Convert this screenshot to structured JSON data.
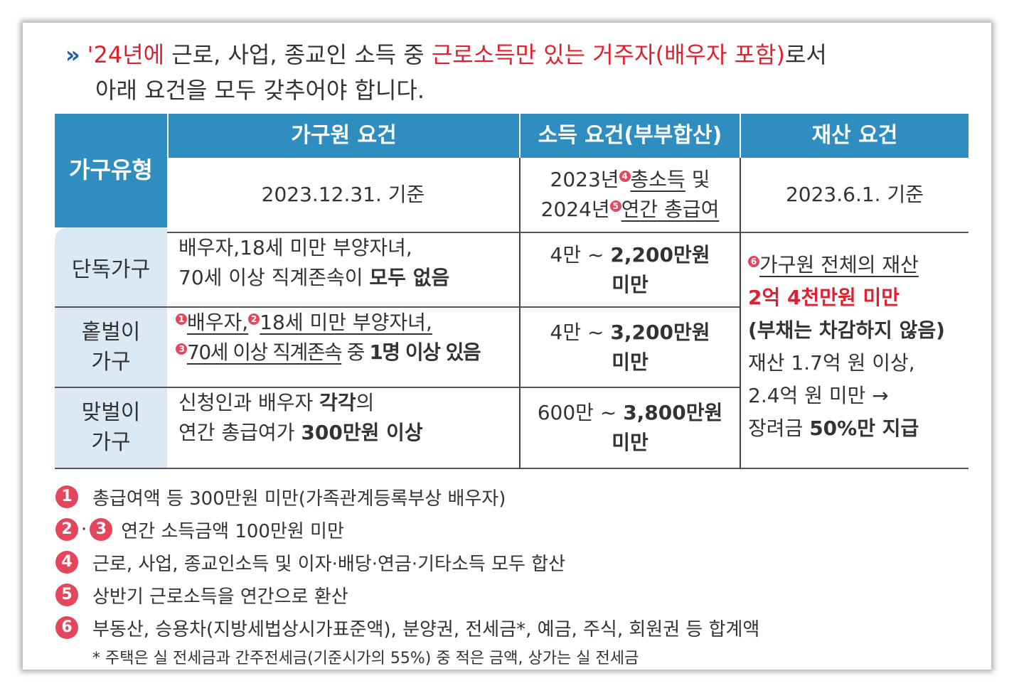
{
  "intro": {
    "marker": "»",
    "year": "'24년에",
    "text1": " 근로, 사업, 종교인 소득 중 ",
    "highlight": "근로소득만 있는 거주자(배우자 포함)",
    "text2": "로서",
    "line2": "아래 요건을 모두 갖추어야 합니다."
  },
  "table": {
    "headers": {
      "type": "가구유형",
      "members": "가구원 요건",
      "income": "소득 요건(부부합산)",
      "assets": "재산 요건"
    },
    "basis": {
      "members": "2023.12.31. 기준",
      "income_a": "2023년",
      "income_a_num": "4",
      "income_a_u": "총소득",
      "income_a_tail": " 및",
      "income_b": "2024년",
      "income_b_num": "5",
      "income_b_u": "연간 총급여",
      "assets": "2023.6.1. 기준"
    },
    "rows": [
      {
        "type": "단독가구",
        "members_1": "배우자,18세 미만 부양자녀,",
        "members_2a": "70세 이상 직계존속이 ",
        "members_2b": "모두 없음",
        "income_a": "4만 ~ ",
        "income_b": "2,200만원",
        "income_c": "미만"
      },
      {
        "type_1": "홑벌이",
        "type_2": "가구",
        "n1": "1",
        "m1": "배우자,",
        "n2": "2",
        "m2": "18세 미만 부양자녀,",
        "n3": "3",
        "m3": "70세 이상 직계존속",
        "m3b": " 중 ",
        "m3c": "1명 이상 있음",
        "income_a": "4만 ~ ",
        "income_b": "3,200만원",
        "income_c": "미만"
      },
      {
        "type_1": "맞벌이",
        "type_2": "가구",
        "members_1a": "신청인과 배우자 ",
        "members_1b": "각각",
        "members_1c": "의",
        "members_2a": "연간 총급여가 ",
        "members_2b": "300만원 이상",
        "income_a": "600만 ~ ",
        "income_b": "3,800만원",
        "income_c": "미만"
      }
    ],
    "assets": {
      "num": "6",
      "line1": "가구원 전체의 재산",
      "line2": "2억 4천만원 미만",
      "line3": "(부채는 차감하지 않음)",
      "line4": "재산 1.7억 원 이상,",
      "line5": "2.4억 원 미만 →",
      "line6a": "장려금 ",
      "line6b": "50%만 지급"
    }
  },
  "notes": [
    {
      "num": "1",
      "text": "총급여액 등 300만원 미만(가족관계등록부상 배우자)"
    },
    {
      "num": "2",
      "num2": "3",
      "sep": "·",
      "text": "연간 소득금액 100만원 미만"
    },
    {
      "num": "4",
      "text": "근로, 사업, 종교인소득 및 이자·배당·연금·기타소득 모두 합산"
    },
    {
      "num": "5",
      "text": "상반기 근로소득을 연간으로 환산"
    },
    {
      "num": "6",
      "text": "부동산, 승용차(지방세법상시가표준액), 분양권, 전세금*, 예금, 주식, 회원권 등 합계액"
    }
  ],
  "subnote": "* 주택은 실 전세금과 간주전세금(기준시가의 55%) 중 적은 금액, 상가는 실 전세금",
  "colors": {
    "header_blue": "#2f8dbf",
    "row_header": "#dbe9f5",
    "accent_red": "#e0202f",
    "badge_red": "#e4475b",
    "arrow_blue": "#1f5fa8"
  }
}
